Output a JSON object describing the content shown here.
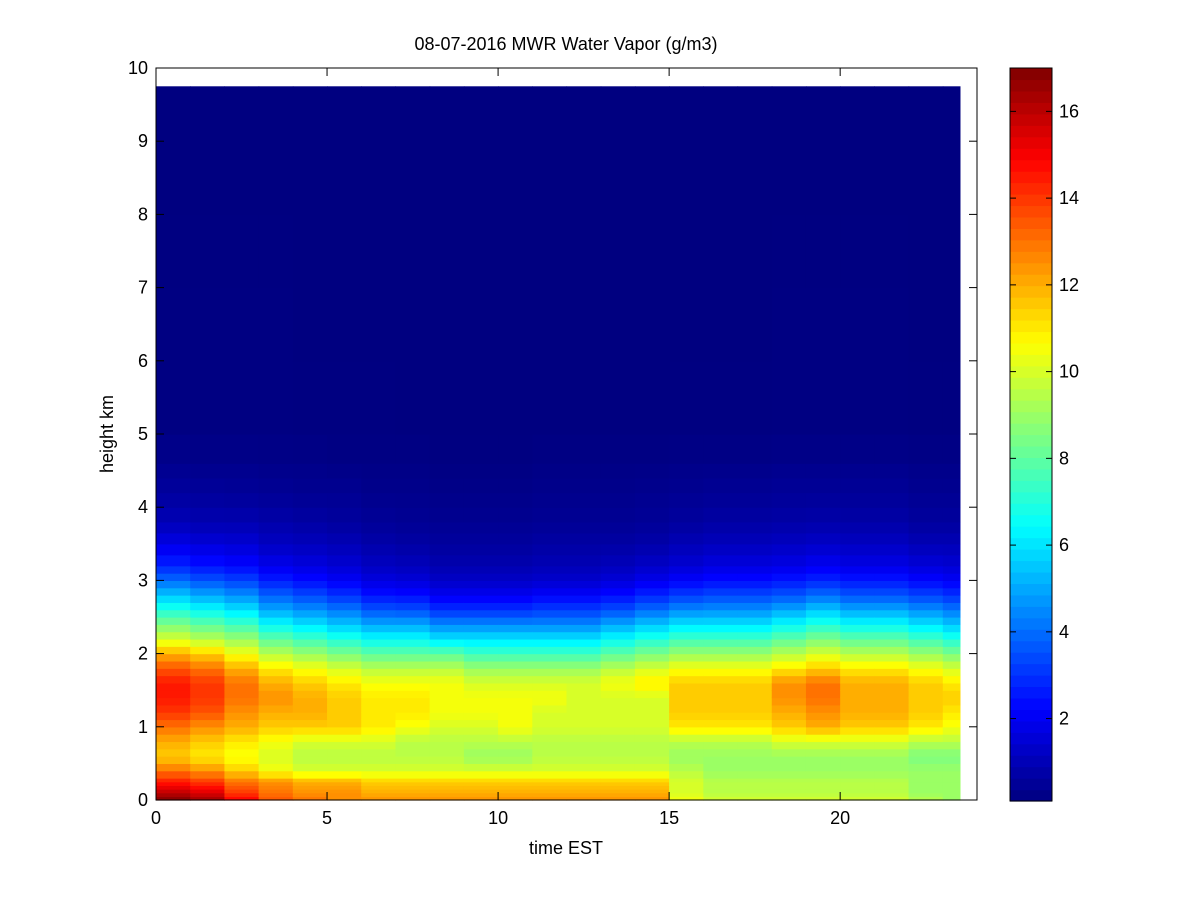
{
  "chart_data": {
    "type": "heatmap",
    "title": "08-07-2016 MWR Water Vapor (g/m3)",
    "xlabel": "time EST",
    "ylabel": "height km",
    "xlim": [
      0,
      24
    ],
    "ylim": [
      0,
      10
    ],
    "x_ticks": [
      0,
      5,
      10,
      15,
      20
    ],
    "y_ticks": [
      0,
      1,
      2,
      3,
      4,
      5,
      6,
      7,
      8,
      9,
      10
    ],
    "colorbar": {
      "colormap": "jet",
      "range": [
        0.1,
        17
      ],
      "ticks": [
        2,
        4,
        6,
        8,
        10,
        12,
        14,
        16
      ]
    },
    "time_edges": [
      0,
      1,
      2,
      3,
      4,
      5,
      6,
      7,
      8,
      9,
      10,
      11,
      12,
      13,
      14,
      15,
      16,
      17,
      18,
      19,
      20,
      21,
      22,
      23,
      23.5
    ],
    "height_edges": [
      0,
      0.05,
      0.1,
      0.15,
      0.2,
      0.25,
      0.3,
      0.4,
      0.5,
      0.6,
      0.7,
      0.8,
      0.9,
      1.0,
      1.1,
      1.2,
      1.3,
      1.4,
      1.5,
      1.6,
      1.7,
      1.8,
      1.9,
      2.0,
      2.1,
      2.2,
      2.3,
      2.4,
      2.5,
      2.6,
      2.7,
      2.8,
      2.9,
      3.0,
      3.1,
      3.2,
      3.35,
      3.5,
      3.65,
      3.8,
      4.0,
      4.2,
      4.4,
      4.6,
      5.0,
      6.0,
      7.0,
      8.0,
      9.0,
      9.75
    ],
    "profile_heights_km": [
      0,
      0.1,
      0.25,
      0.4,
      0.6,
      0.8,
      1.0,
      1.2,
      1.4,
      1.6,
      1.8,
      2.0,
      2.2,
      2.4,
      2.6,
      2.8,
      3.0,
      3.2,
      3.5,
      3.8,
      4.2,
      4.6,
      5.0,
      10.0
    ],
    "water_vapor_g_m3": [
      [
        17.0,
        16.0,
        14.5,
        13.0,
        11.5,
        12.0,
        13.0,
        14.0,
        14.5,
        14.5,
        13.5,
        12.0,
        10.0,
        8.5,
        7.0,
        5.5,
        4.0,
        2.8,
        1.8,
        1.0,
        0.6,
        0.35,
        0.15,
        0.1
      ],
      [
        16.5,
        15.5,
        14.0,
        12.5,
        11.0,
        11.5,
        12.5,
        13.5,
        14.0,
        14.0,
        13.0,
        11.5,
        9.5,
        8.0,
        6.5,
        5.0,
        3.6,
        2.5,
        1.6,
        0.9,
        0.55,
        0.3,
        0.15,
        0.1
      ],
      [
        15.0,
        14.0,
        13.0,
        11.5,
        10.5,
        11.0,
        12.0,
        12.5,
        13.0,
        13.0,
        12.0,
        10.5,
        9.0,
        7.5,
        6.0,
        4.6,
        3.3,
        2.3,
        1.5,
        0.9,
        0.5,
        0.3,
        0.15,
        0.1
      ],
      [
        13.5,
        13.0,
        12.5,
        10.5,
        10.0,
        10.5,
        11.5,
        12.0,
        12.5,
        12.0,
        11.0,
        9.5,
        8.0,
        6.5,
        5.0,
        3.8,
        2.7,
        1.9,
        1.2,
        0.8,
        0.45,
        0.25,
        0.15,
        0.1
      ],
      [
        13.0,
        12.5,
        12.0,
        10.0,
        9.5,
        10.0,
        11.5,
        12.0,
        12.0,
        11.5,
        10.5,
        9.0,
        7.5,
        6.0,
        4.6,
        3.4,
        2.4,
        1.7,
        1.1,
        0.7,
        0.4,
        0.25,
        0.12,
        0.1
      ],
      [
        12.5,
        12.5,
        12.0,
        10.0,
        9.5,
        10.0,
        11.5,
        11.5,
        11.5,
        11.0,
        10.0,
        8.5,
        7.0,
        5.5,
        4.2,
        3.0,
        2.1,
        1.5,
        1.0,
        0.6,
        0.4,
        0.2,
        0.12,
        0.1
      ],
      [
        12.5,
        12.0,
        11.5,
        10.0,
        9.5,
        10.0,
        11.0,
        11.0,
        11.0,
        10.5,
        9.5,
        8.0,
        6.5,
        5.0,
        3.6,
        2.5,
        1.7,
        1.2,
        0.8,
        0.5,
        0.3,
        0.2,
        0.12,
        0.1
      ],
      [
        12.5,
        12.0,
        11.5,
        10.0,
        9.5,
        9.5,
        10.5,
        11.0,
        11.0,
        10.5,
        9.5,
        8.0,
        6.5,
        5.0,
        3.5,
        2.4,
        1.6,
        1.1,
        0.7,
        0.45,
        0.3,
        0.2,
        0.1,
        0.1
      ],
      [
        12.5,
        12.0,
        11.5,
        10.0,
        9.5,
        9.5,
        10.0,
        10.5,
        10.5,
        10.5,
        9.5,
        8.0,
        6.0,
        4.5,
        3.0,
        2.0,
        1.3,
        0.9,
        0.6,
        0.4,
        0.25,
        0.15,
        0.1,
        0.1
      ],
      [
        12.5,
        12.0,
        11.5,
        10.0,
        9.0,
        9.5,
        10.0,
        10.5,
        10.5,
        10.0,
        9.0,
        7.5,
        6.0,
        4.5,
        3.0,
        2.0,
        1.3,
        0.9,
        0.6,
        0.4,
        0.25,
        0.15,
        0.1,
        0.1
      ],
      [
        12.5,
        12.0,
        11.5,
        10.0,
        9.0,
        9.5,
        10.5,
        10.5,
        10.5,
        10.0,
        9.0,
        7.5,
        6.0,
        4.5,
        3.0,
        2.0,
        1.3,
        0.9,
        0.6,
        0.4,
        0.25,
        0.15,
        0.1,
        0.1
      ],
      [
        12.5,
        12.0,
        11.5,
        10.0,
        9.5,
        9.5,
        10.0,
        10.0,
        10.5,
        10.0,
        9.0,
        7.5,
        6.0,
        4.5,
        3.2,
        2.2,
        1.4,
        1.0,
        0.7,
        0.45,
        0.3,
        0.2,
        0.1,
        0.1
      ],
      [
        12.5,
        12.0,
        11.5,
        10.0,
        9.5,
        9.5,
        10.0,
        10.0,
        10.0,
        10.0,
        9.0,
        7.5,
        6.0,
        4.5,
        3.2,
        2.2,
        1.4,
        1.0,
        0.7,
        0.45,
        0.3,
        0.2,
        0.1,
        0.1
      ],
      [
        12.5,
        12.0,
        11.5,
        10.0,
        9.5,
        9.5,
        10.0,
        10.0,
        10.0,
        10.5,
        9.5,
        8.0,
        6.5,
        5.0,
        3.5,
        2.4,
        1.6,
        1.1,
        0.7,
        0.45,
        0.3,
        0.2,
        0.1,
        0.1
      ],
      [
        12.5,
        12.0,
        11.5,
        10.0,
        9.5,
        9.5,
        10.0,
        10.0,
        10.0,
        11.0,
        10.0,
        8.5,
        7.0,
        5.5,
        4.0,
        2.8,
        1.9,
        1.3,
        0.8,
        0.5,
        0.35,
        0.2,
        0.1,
        0.1
      ],
      [
        10.5,
        10.0,
        10.0,
        9.5,
        9.0,
        9.5,
        11.0,
        11.5,
        11.5,
        11.5,
        10.5,
        9.0,
        7.5,
        6.0,
        4.5,
        3.2,
        2.2,
        1.5,
        1.0,
        0.6,
        0.4,
        0.25,
        0.12,
        0.1
      ],
      [
        10.0,
        9.5,
        9.5,
        9.0,
        9.0,
        9.5,
        11.0,
        11.5,
        11.5,
        11.5,
        10.5,
        9.0,
        7.5,
        6.0,
        4.6,
        3.4,
        2.4,
        1.7,
        1.1,
        0.7,
        0.45,
        0.25,
        0.12,
        0.1
      ],
      [
        10.0,
        9.5,
        9.5,
        9.0,
        9.0,
        9.5,
        11.0,
        11.5,
        11.5,
        11.5,
        10.5,
        9.0,
        7.5,
        6.0,
        4.6,
        3.4,
        2.4,
        1.7,
        1.1,
        0.7,
        0.45,
        0.25,
        0.12,
        0.1
      ],
      [
        10.0,
        9.5,
        9.5,
        9.0,
        9.0,
        10.0,
        11.5,
        12.0,
        12.5,
        12.5,
        11.0,
        9.5,
        8.0,
        6.5,
        5.0,
        3.6,
        2.6,
        1.8,
        1.2,
        0.75,
        0.5,
        0.3,
        0.15,
        0.1
      ],
      [
        10.0,
        9.5,
        9.5,
        9.0,
        9.0,
        10.0,
        12.0,
        12.5,
        13.0,
        13.0,
        11.5,
        10.0,
        8.5,
        7.0,
        5.5,
        4.0,
        2.8,
        2.0,
        1.3,
        0.8,
        0.5,
        0.3,
        0.15,
        0.1
      ],
      [
        10.0,
        9.5,
        9.5,
        9.0,
        9.0,
        10.0,
        11.5,
        12.0,
        12.0,
        12.0,
        11.0,
        9.5,
        8.0,
        6.5,
        5.0,
        3.6,
        2.6,
        1.8,
        1.2,
        0.75,
        0.5,
        0.3,
        0.15,
        0.1
      ],
      [
        10.0,
        9.5,
        9.5,
        9.0,
        9.0,
        10.0,
        11.5,
        12.0,
        12.0,
        12.0,
        11.0,
        9.5,
        8.0,
        6.5,
        5.0,
        3.6,
        2.6,
        1.8,
        1.2,
        0.75,
        0.5,
        0.3,
        0.15,
        0.1
      ],
      [
        9.5,
        9.0,
        9.0,
        9.0,
        8.5,
        9.5,
        11.0,
        11.5,
        11.5,
        11.5,
        10.5,
        9.0,
        7.5,
        6.0,
        4.6,
        3.3,
        2.3,
        1.6,
        1.0,
        0.6,
        0.4,
        0.25,
        0.12,
        0.1
      ],
      [
        9.0,
        9.0,
        9.0,
        9.0,
        8.5,
        9.5,
        10.5,
        11.0,
        11.5,
        11.0,
        10.0,
        8.5,
        7.0,
        5.5,
        4.2,
        3.0,
        2.1,
        1.5,
        1.0,
        0.6,
        0.4,
        0.25,
        0.12,
        0.1
      ]
    ]
  }
}
